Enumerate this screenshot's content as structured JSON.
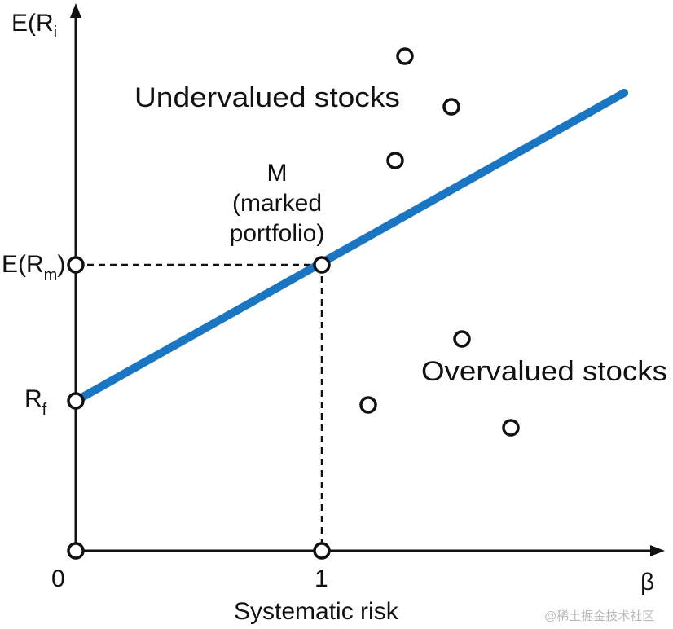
{
  "diagram": {
    "y_axis_label": {
      "base": "E(R",
      "sub": "i",
      "close": ""
    },
    "x_axis_symbol": "β",
    "x_axis_title": "Systematic risk",
    "origin_label": "0",
    "x_tick_label": "1",
    "y_labels": {
      "erm": {
        "base": "E(R",
        "sub": "m",
        "close": ")"
      },
      "rf": {
        "base": "R",
        "sub": "f"
      }
    },
    "market_point_label": [
      "M",
      "(marked",
      "portfolio)"
    ],
    "region_labels": {
      "above": "Undervalued stocks",
      "below": "Overvalued stocks"
    },
    "line_color": "#1a75c2",
    "watermark": "@稀土掘金技术社区"
  }
}
